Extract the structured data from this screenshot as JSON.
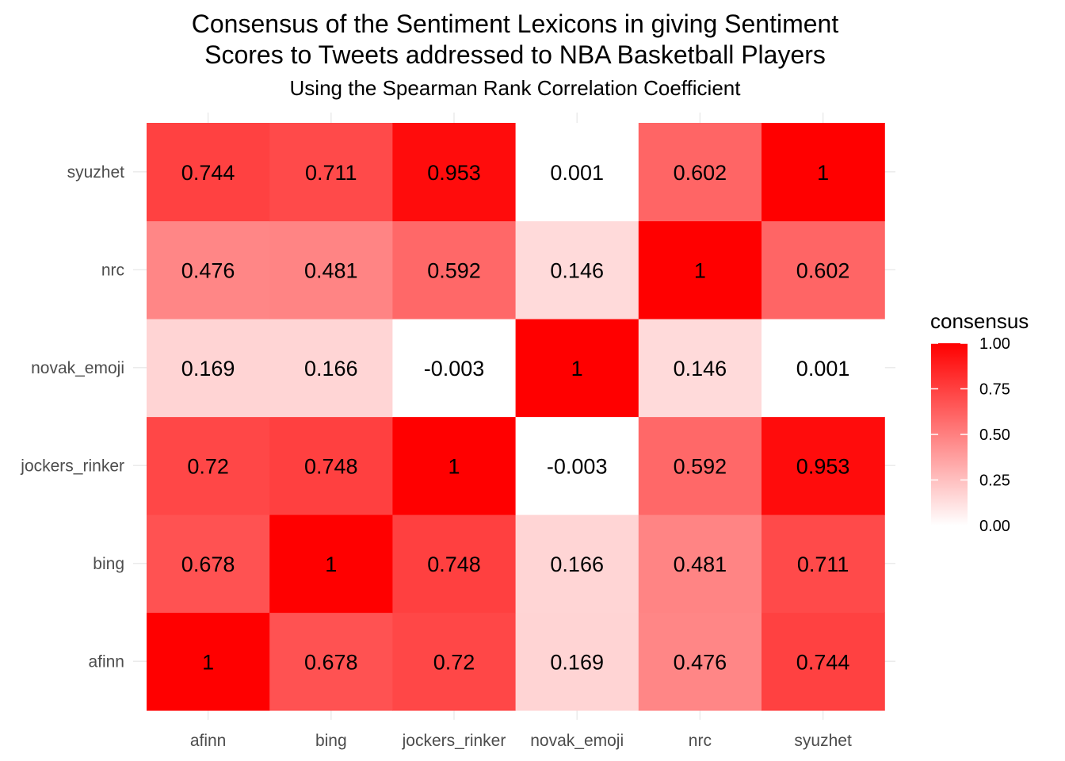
{
  "chart_data": {
    "type": "heatmap",
    "title_lines": [
      "Consensus of the Sentiment Lexicons in giving Sentiment",
      "Scores to Tweets addressed to NBA Basketball Players"
    ],
    "subtitle": "Using the Spearman Rank Correlation Coefficient",
    "xlabel": "",
    "ylabel": "",
    "x_categories": [
      "afinn",
      "bing",
      "jockers_rinker",
      "novak_emoji",
      "nrc",
      "syuzhet"
    ],
    "y_categories": [
      "afinn",
      "bing",
      "jockers_rinker",
      "novak_emoji",
      "nrc",
      "syuzhet"
    ],
    "matrix": [
      [
        "1",
        "0.678",
        "0.72",
        "0.169",
        "0.476",
        "0.744"
      ],
      [
        "0.678",
        "1",
        "0.748",
        "0.166",
        "0.481",
        "0.711"
      ],
      [
        "0.72",
        "0.748",
        "1",
        "-0.003",
        "0.592",
        "0.953"
      ],
      [
        "0.169",
        "0.166",
        "-0.003",
        "1",
        "0.146",
        "0.001"
      ],
      [
        "0.476",
        "0.481",
        "0.592",
        "0.146",
        "1",
        "0.602"
      ],
      [
        "0.744",
        "0.711",
        "0.953",
        "0.001",
        "0.602",
        "1"
      ]
    ],
    "legend": {
      "title": "consensus",
      "ticks": [
        "0.00",
        "0.25",
        "0.50",
        "0.75",
        "1.00"
      ],
      "range": [
        0,
        1
      ],
      "low_color": "#ffffff",
      "high_color": "#ff0000",
      "placement": "right"
    },
    "grid": true
  }
}
